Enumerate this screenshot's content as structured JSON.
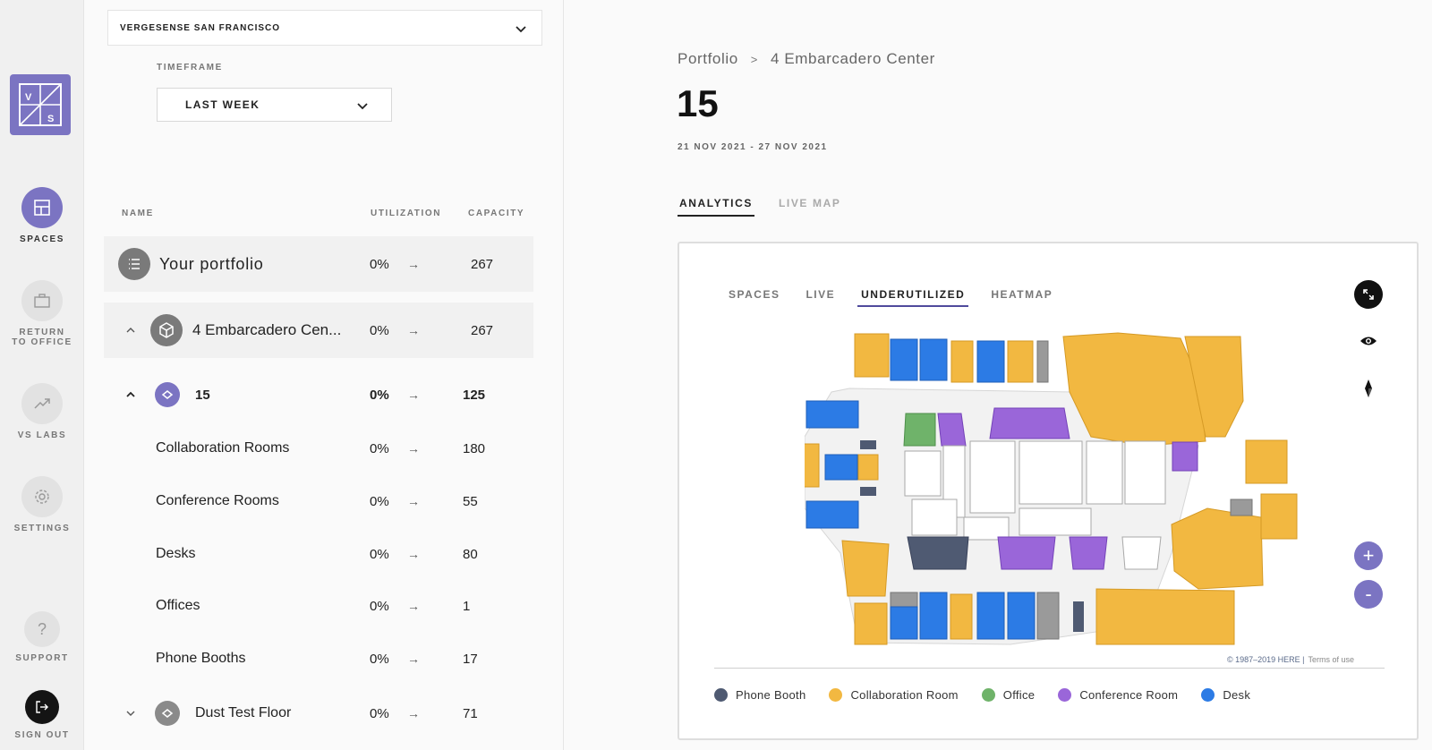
{
  "nav": {
    "logo_letters": [
      "V",
      "S"
    ],
    "items": [
      {
        "id": "spaces",
        "label": "SPACES",
        "icon": "layout-icon",
        "active": true
      },
      {
        "id": "return-to-office",
        "label": "RETURN TO OFFICE",
        "icon": "briefcase-icon",
        "active": false
      },
      {
        "id": "vs-labs",
        "label": "VS LABS",
        "icon": "trending-up-icon",
        "active": false
      },
      {
        "id": "settings",
        "label": "SETTINGS",
        "icon": "gear-icon",
        "active": false
      },
      {
        "id": "support",
        "label": "SUPPORT",
        "icon": "question-icon",
        "active": false
      },
      {
        "id": "sign-out",
        "label": "SIGN OUT",
        "icon": "sign-out-icon",
        "active": false
      }
    ],
    "accent": "#7b74c2"
  },
  "panel": {
    "site_select": "VERGESENSE SAN FRANCISCO",
    "timeframe_label": "TIMEFRAME",
    "timeframe_value": "LAST WEEK",
    "columns": {
      "name": "NAME",
      "utilization": "UTILIZATION",
      "capacity": "CAPACITY"
    },
    "rows": [
      {
        "name": "Your portfolio",
        "utilization": "0%",
        "capacity": "267"
      },
      {
        "name": "4 Embarcadero Cen...",
        "utilization": "0%",
        "capacity": "267"
      },
      {
        "name": "15",
        "utilization": "0%",
        "capacity": "125"
      },
      {
        "name": "Collaboration Rooms",
        "utilization": "0%",
        "capacity": "180"
      },
      {
        "name": "Conference Rooms",
        "utilization": "0%",
        "capacity": "55"
      },
      {
        "name": "Desks",
        "utilization": "0%",
        "capacity": "80"
      },
      {
        "name": "Offices",
        "utilization": "0%",
        "capacity": "1"
      },
      {
        "name": "Phone Booths",
        "utilization": "0%",
        "capacity": "17"
      },
      {
        "name": "Dust Test Floor",
        "utilization": "0%",
        "capacity": "71"
      }
    ],
    "arrow": "→"
  },
  "main": {
    "breadcrumb": {
      "root": "Portfolio",
      "sep": ">",
      "current": "4 Embarcadero Center"
    },
    "title": "15",
    "date_range": "21 NOV 2021 - 27 NOV 2021",
    "tabs": [
      {
        "label": "ANALYTICS",
        "active": true
      },
      {
        "label": "LIVE MAP",
        "active": false
      }
    ],
    "map": {
      "tabs": [
        {
          "label": "SPACES",
          "active": false
        },
        {
          "label": "LIVE",
          "active": false
        },
        {
          "label": "UNDERUTILIZED",
          "active": true
        },
        {
          "label": "HEATMAP",
          "active": false
        }
      ],
      "zoom_in": "+",
      "zoom_out": "-",
      "attribution": "© 1987–2019 HERE |",
      "terms": "Terms of use",
      "legend": [
        {
          "label": "Phone Booth",
          "color": "#4f5a72"
        },
        {
          "label": "Collaboration Room",
          "color": "#f2b841"
        },
        {
          "label": "Office",
          "color": "#6fb36a"
        },
        {
          "label": "Conference Room",
          "color": "#9a66d9"
        },
        {
          "label": "Desk",
          "color": "#2c7be5"
        }
      ]
    }
  }
}
